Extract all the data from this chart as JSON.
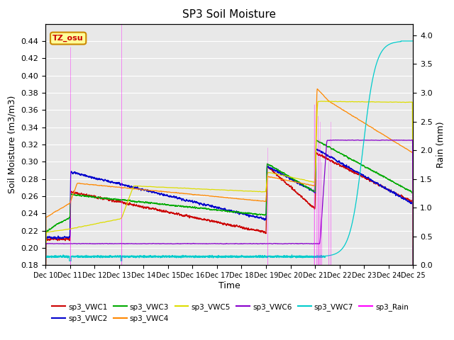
{
  "title": "SP3 Soil Moisture",
  "xlabel": "Time",
  "ylabel_left": "Soil Moisture (m3/m3)",
  "ylabel_right": "Rain (mm)",
  "ylim_left": [
    0.18,
    0.46
  ],
  "ylim_right": [
    0.0,
    4.2
  ],
  "yticks_left": [
    0.18,
    0.2,
    0.22,
    0.24,
    0.26,
    0.28,
    0.3,
    0.32,
    0.34,
    0.36,
    0.38,
    0.4,
    0.42,
    0.44
  ],
  "yticks_right": [
    0.0,
    0.5,
    1.0,
    1.5,
    2.0,
    2.5,
    3.0,
    3.5,
    4.0
  ],
  "xtick_labels": [
    "Dec 10",
    "Dec 11",
    "Dec 12",
    "Dec 13",
    "Dec 14",
    "Dec 15",
    "Dec 16",
    "Dec 17",
    "Dec 18",
    "Dec 19",
    "Dec 20",
    "Dec 21",
    "Dec 22",
    "Dec 23",
    "Dec 24",
    "Dec 25"
  ],
  "colors": {
    "sp3_VWC1": "#cc0000",
    "sp3_VWC2": "#0000cc",
    "sp3_VWC3": "#00aa00",
    "sp3_VWC4": "#ff8800",
    "sp3_VWC5": "#dddd00",
    "sp3_VWC6": "#8800cc",
    "sp3_VWC7": "#00cccc",
    "sp3_Rain": "#ff00ff"
  },
  "background_color": "#e8e8e8",
  "label_box_color": "#ffff99",
  "label_box_text": "TZ_osu",
  "label_box_edge": "#cc8800",
  "grid_color": "#ffffff"
}
